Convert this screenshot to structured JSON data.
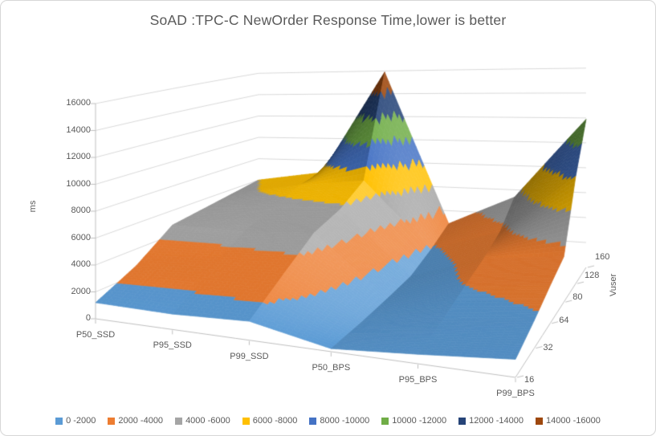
{
  "title": "SoAD :TPC-C NewOrder Response Time,lower is better",
  "value_axis": {
    "title": "ms",
    "min": 0,
    "max": 16000,
    "step": 2000,
    "tick_labels": [
      "0",
      "2000",
      "4000",
      "6000",
      "8000",
      "10000",
      "12000",
      "14000",
      "16000"
    ]
  },
  "category_axis": {
    "labels": [
      "P50_SSD",
      "P95_SSD",
      "P99_SSD",
      "P50_BPS",
      "P95_BPS",
      "P99_BPS"
    ]
  },
  "depth_axis": {
    "title": "Vuser",
    "labels": [
      "16",
      "32",
      "64",
      "80",
      "128",
      "160"
    ]
  },
  "legend": [
    {
      "label": "0 -2000",
      "color": "#5B9BD5",
      "min": 0,
      "max": 2000
    },
    {
      "label": "2000 -4000",
      "color": "#ED7D31",
      "min": 2000,
      "max": 4000
    },
    {
      "label": "4000 -6000",
      "color": "#A5A5A5",
      "min": 4000,
      "max": 6000
    },
    {
      "label": "6000 -8000",
      "color": "#FFC000",
      "min": 6000,
      "max": 8000
    },
    {
      "label": "8000 -10000",
      "color": "#4472C4",
      "min": 8000,
      "max": 10000
    },
    {
      "label": "10000 -12000",
      "color": "#70AD47",
      "min": 10000,
      "max": 12000
    },
    {
      "label": "12000 -14000",
      "color": "#264478",
      "min": 12000,
      "max": 14000
    },
    {
      "label": "14000 -16000",
      "color": "#9E480E",
      "min": 14000,
      "max": 16000
    }
  ],
  "chart_data": {
    "type": "surface",
    "title": "SoAD :TPC-C NewOrder Response Time,lower is better",
    "categories": [
      "P50_SSD",
      "P95_SSD",
      "P99_SSD",
      "P50_BPS",
      "P95_BPS",
      "P99_BPS"
    ],
    "depth_values": [
      "16",
      "32",
      "64",
      "80",
      "128",
      "160"
    ],
    "ylabel": "ms",
    "depth_label": "Vuser",
    "ylim": [
      0,
      16000
    ],
    "ytick_step": 2000,
    "grid": true,
    "legend_position": "bottom",
    "units": "ms",
    "series": [
      {
        "name": "16",
        "values": [
          1200,
          1100,
          1300,
          200,
          600,
          1100
        ]
      },
      {
        "name": "32",
        "values": [
          2700,
          3000,
          3200,
          350,
          1200,
          1800
        ]
      },
      {
        "name": "64",
        "values": [
          4800,
          4700,
          5000,
          600,
          2000,
          2600
        ]
      },
      {
        "name": "80",
        "values": [
          5200,
          5500,
          5800,
          900,
          2700,
          3300
        ]
      },
      {
        "name": "128",
        "values": [
          5600,
          6600,
          7200,
          1800,
          3600,
          8200
        ]
      },
      {
        "name": "160",
        "values": [
          6000,
          6900,
          15900,
          2900,
          5400,
          11900
        ]
      }
    ]
  }
}
